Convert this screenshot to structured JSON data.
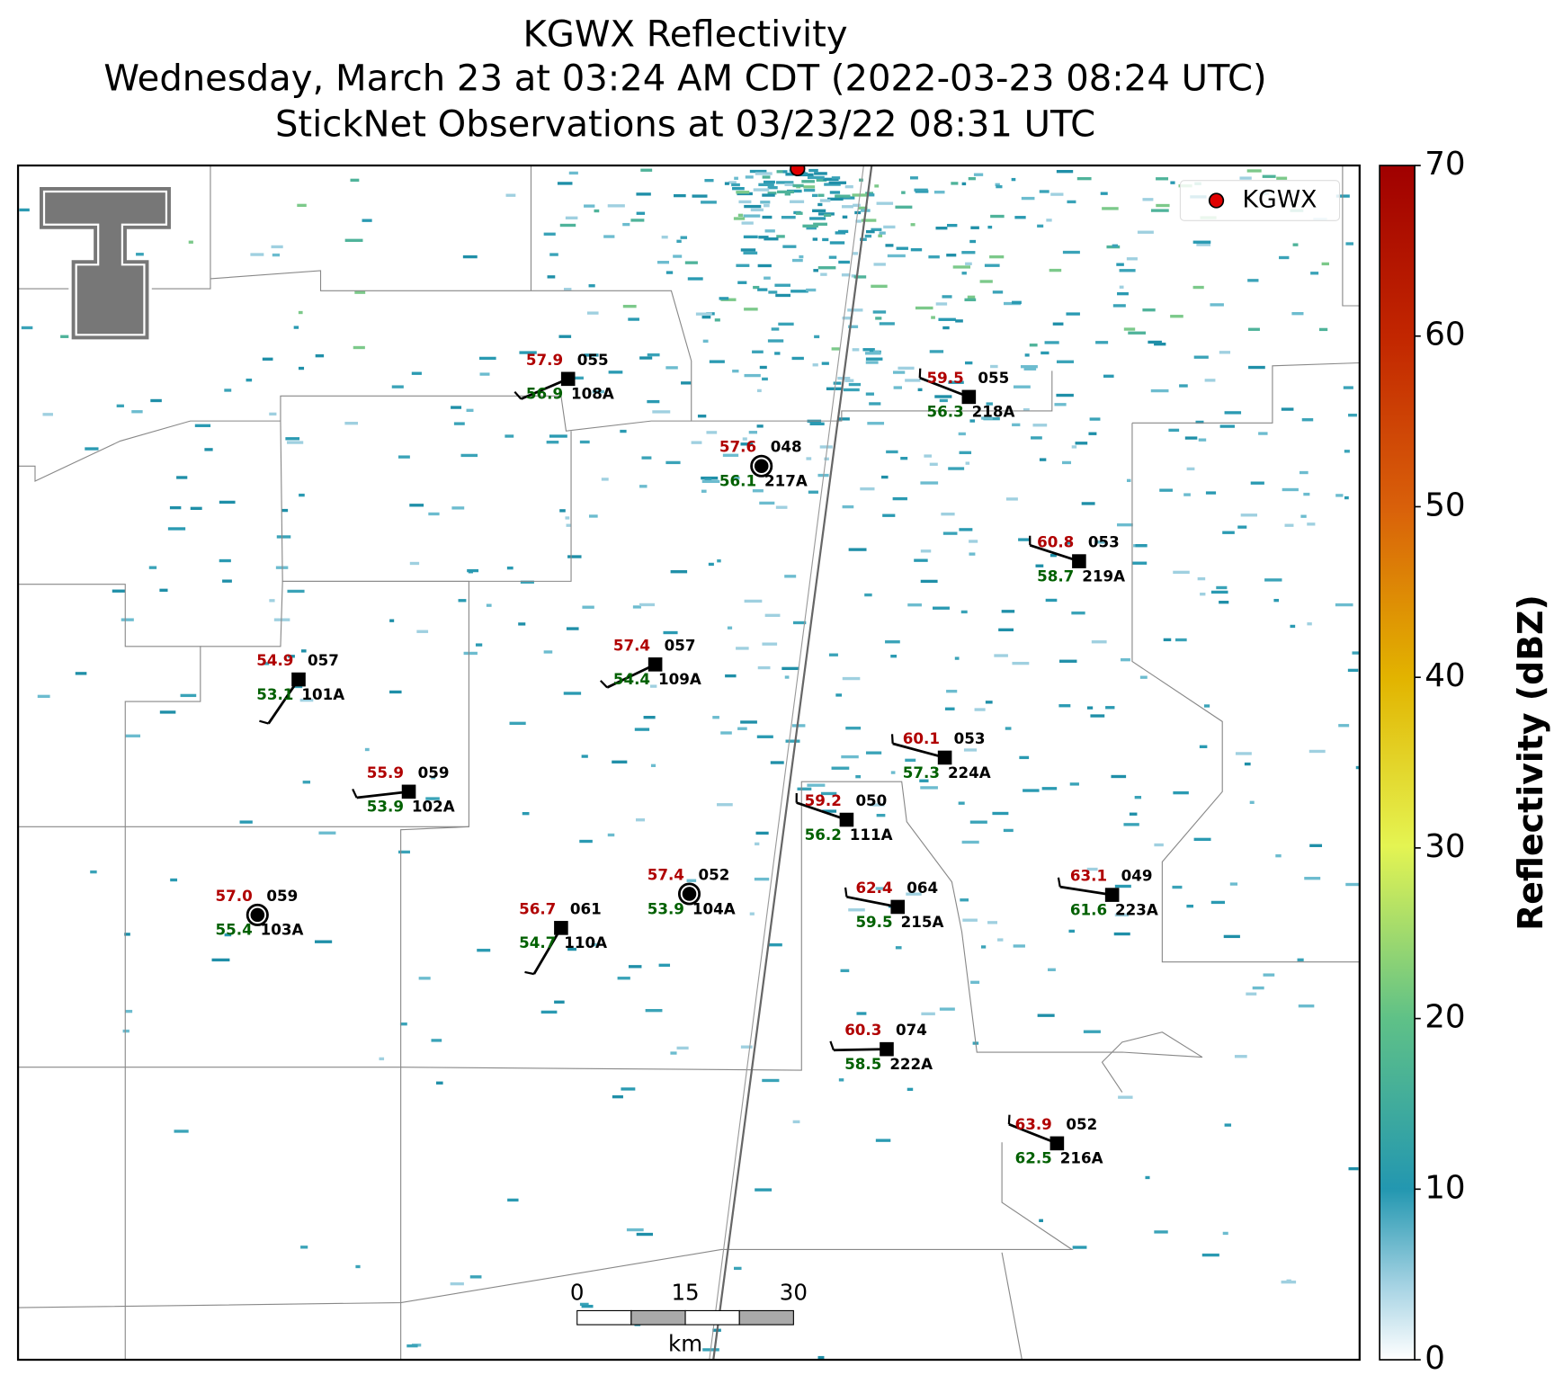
{
  "title": [
    "KGWX Reflectivity",
    "Wednesday, March 23 at 03:24 AM CDT (2022-03-23 08:24 UTC)",
    "StickNet Observations at 03/23/22 08:31 UTC"
  ],
  "legend": {
    "label": "KGWX"
  },
  "colorbar": {
    "label": "Reflectivity (dBZ)",
    "ticks": [
      0,
      10,
      20,
      30,
      40,
      50,
      60,
      70
    ]
  },
  "scale_bar": {
    "ticks": [
      "0",
      "15",
      "30"
    ],
    "unit": "km"
  },
  "stations": [
    {
      "id": "108A",
      "temperature": "57.9",
      "dewpoint": "56.9",
      "pressure": "055"
    },
    {
      "id": "218A",
      "temperature": "59.5",
      "dewpoint": "56.3",
      "pressure": "055"
    },
    {
      "id": "217A",
      "temperature": "57.6",
      "dewpoint": "56.1",
      "pressure": "048"
    },
    {
      "id": "219A",
      "temperature": "60.8",
      "dewpoint": "58.7",
      "pressure": "053"
    },
    {
      "id": "109A",
      "temperature": "57.4",
      "dewpoint": "54.4",
      "pressure": "057"
    },
    {
      "id": "101A",
      "temperature": "54.9",
      "dewpoint": "53.1",
      "pressure": "057"
    },
    {
      "id": "224A",
      "temperature": "60.1",
      "dewpoint": "57.3",
      "pressure": "053"
    },
    {
      "id": "102A",
      "temperature": "55.9",
      "dewpoint": "53.9",
      "pressure": "059"
    },
    {
      "id": "111A",
      "temperature": "59.2",
      "dewpoint": "56.2",
      "pressure": "050"
    },
    {
      "id": "104A",
      "temperature": "57.4",
      "dewpoint": "53.9",
      "pressure": "052"
    },
    {
      "id": "223A",
      "temperature": "63.1",
      "dewpoint": "61.6",
      "pressure": "049"
    },
    {
      "id": "215A",
      "temperature": "62.4",
      "dewpoint": "59.5",
      "pressure": "064"
    },
    {
      "id": "103A",
      "temperature": "57.0",
      "dewpoint": "55.4",
      "pressure": "059"
    },
    {
      "id": "110A",
      "temperature": "56.7",
      "dewpoint": "54.7",
      "pressure": "061"
    },
    {
      "id": "222A",
      "temperature": "60.3",
      "dewpoint": "58.5",
      "pressure": "074"
    },
    {
      "id": "216A",
      "temperature": "63.9",
      "dewpoint": "62.5",
      "pressure": "052"
    }
  ]
}
